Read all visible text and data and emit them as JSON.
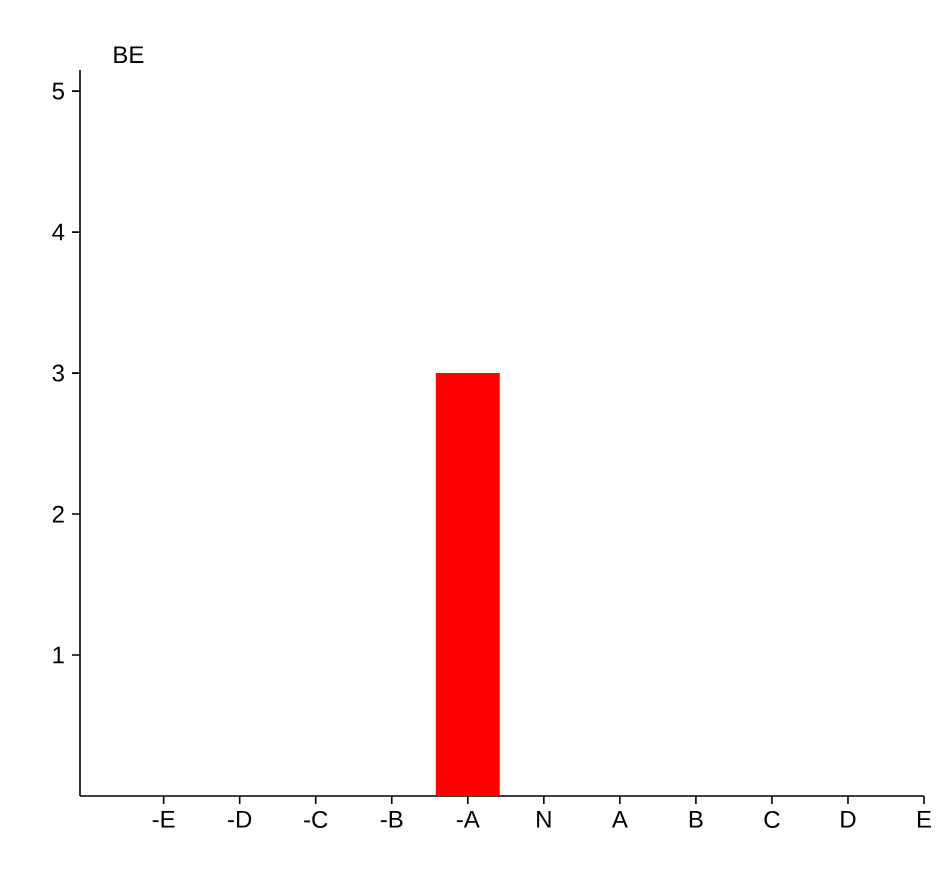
{
  "chart_data": {
    "type": "bar",
    "ylabel": "BE",
    "categories": [
      "-E",
      "-D",
      "-C",
      "-B",
      "-A",
      "N",
      "A",
      "B",
      "C",
      "D",
      "E"
    ],
    "values": [
      0,
      0,
      0,
      0,
      3,
      0,
      0,
      0,
      0,
      0,
      0
    ],
    "color": "#ff0000",
    "ylim": [
      0,
      5.15
    ],
    "yticks": [
      1,
      2,
      3,
      4,
      5
    ],
    "grid": false
  }
}
